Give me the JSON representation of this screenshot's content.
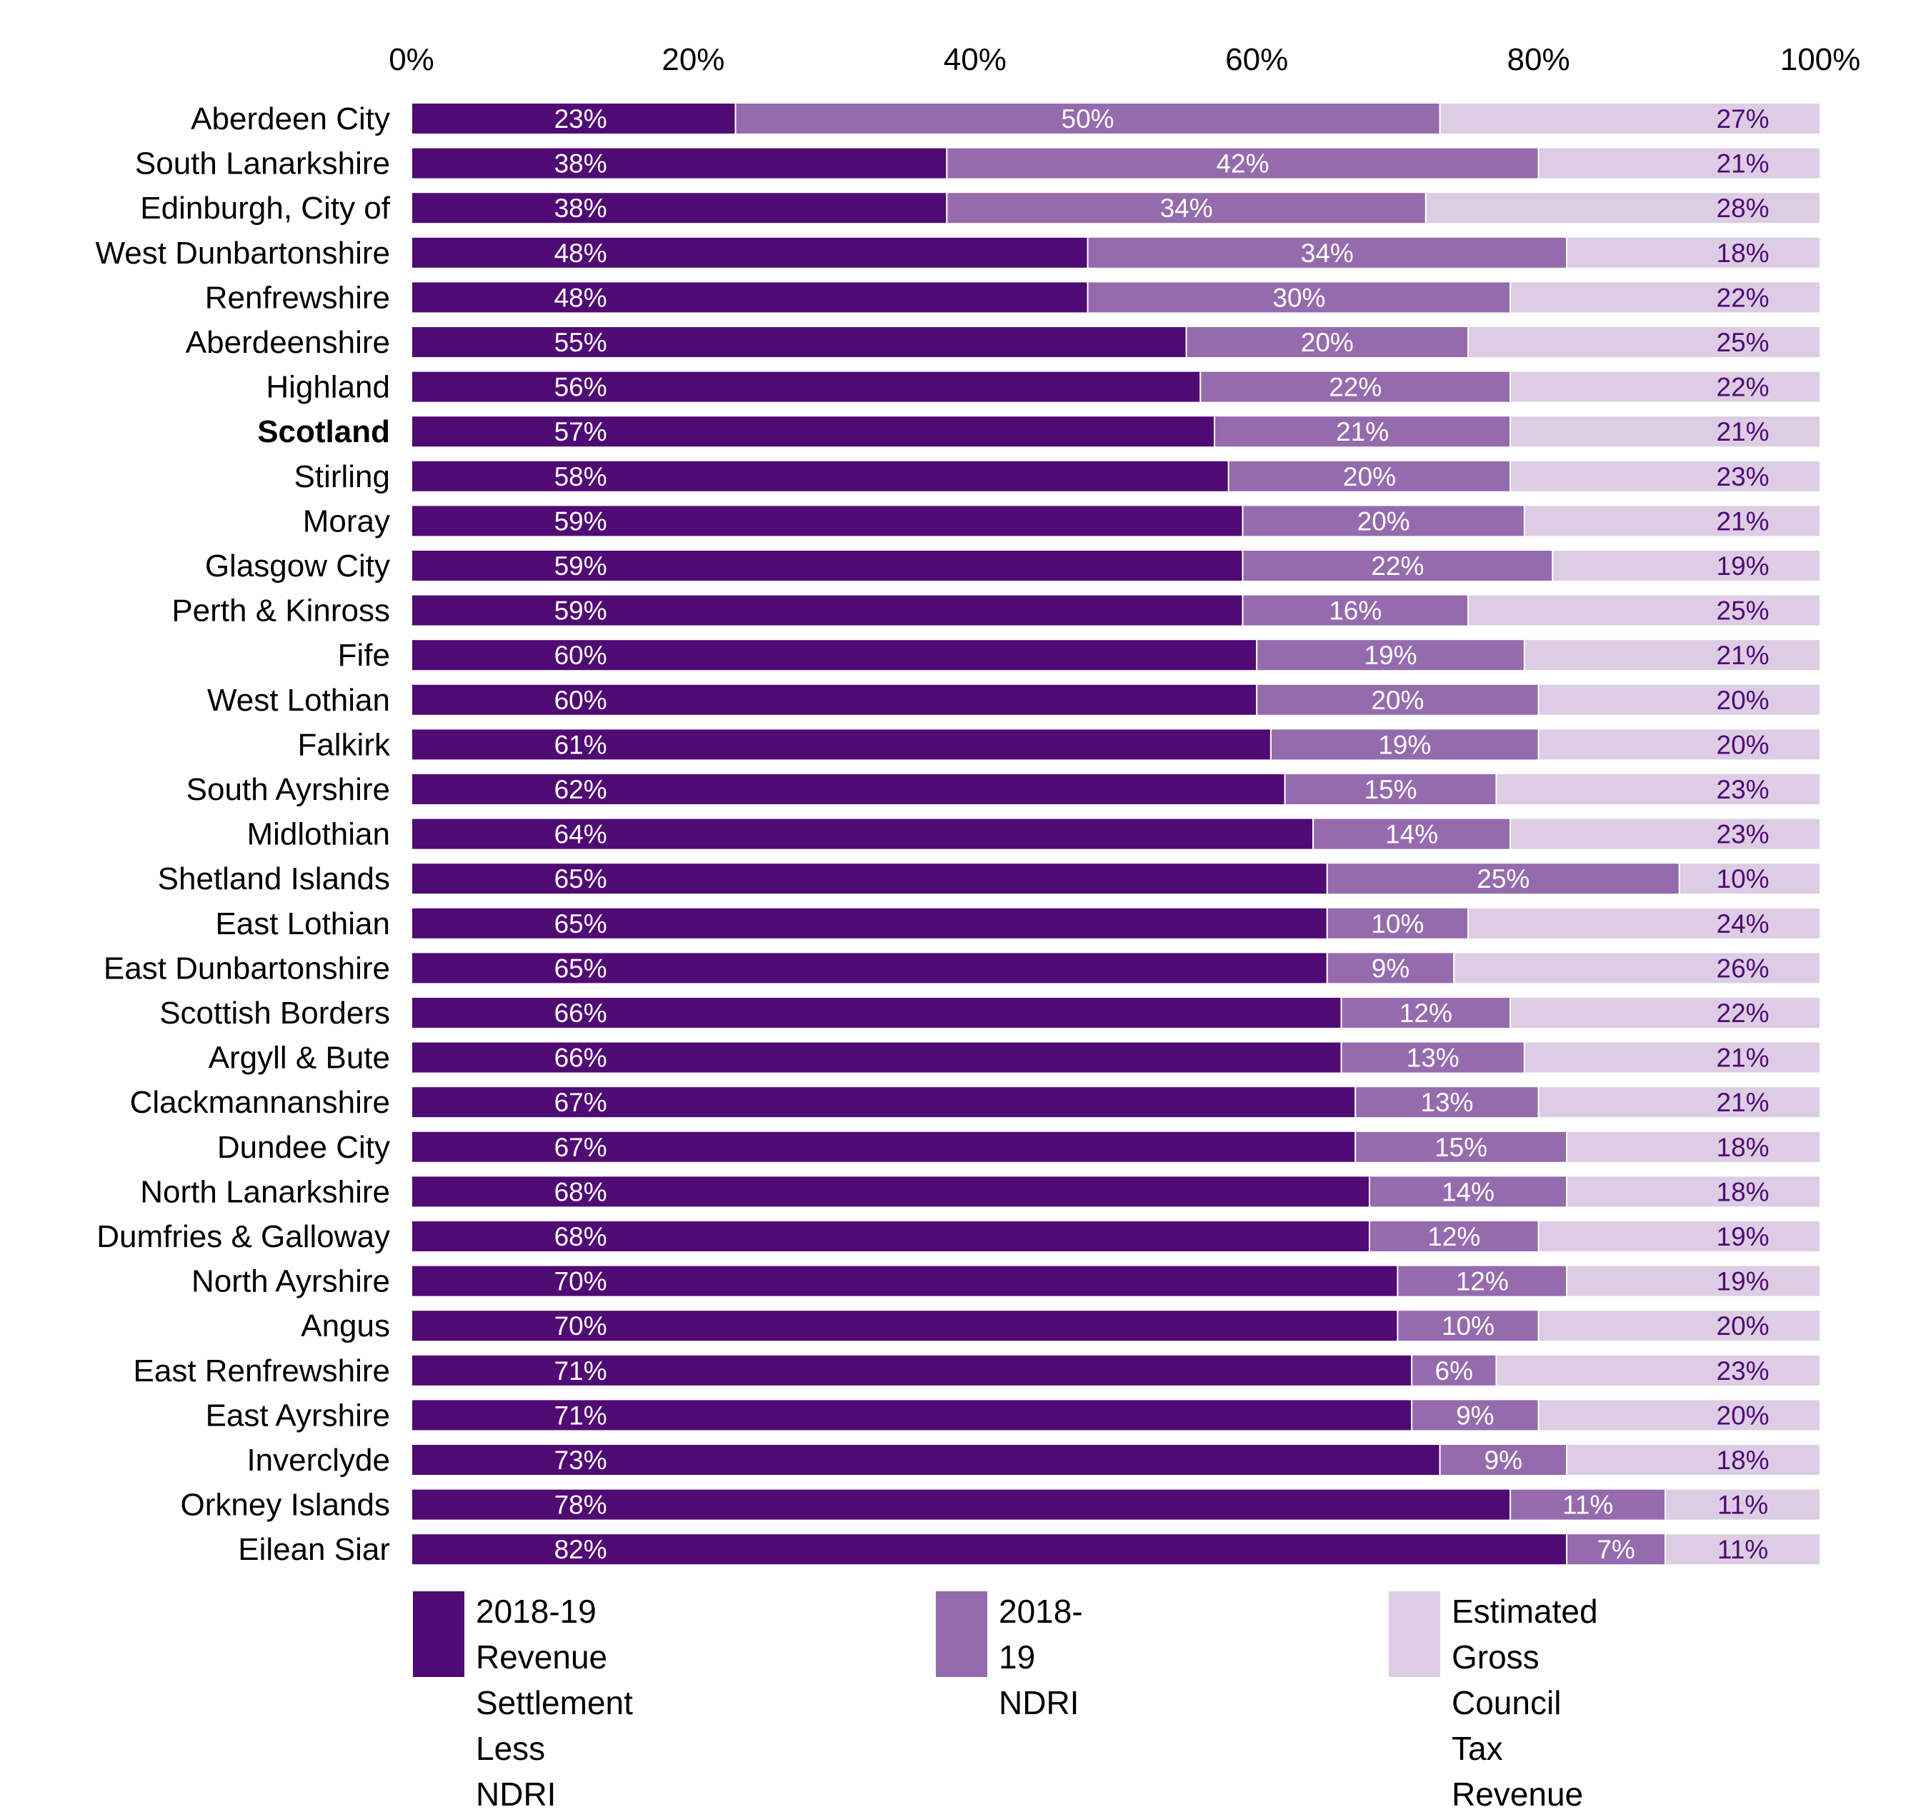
{
  "chart_data": {
    "type": "bar",
    "orientation": "horizontal",
    "stacked": "percent",
    "title": "",
    "xlabel": "",
    "ylabel": "",
    "xlim": [
      0,
      100
    ],
    "x_ticks": [
      "0%",
      "20%",
      "40%",
      "60%",
      "80%",
      "100%"
    ],
    "x_tick_values": [
      0,
      20,
      40,
      60,
      80,
      100
    ],
    "x_axis_position": "top",
    "grid": false,
    "legend_position": "bottom",
    "highlighted_category": "Scotland",
    "categories": [
      "Aberdeen City",
      "South Lanarkshire",
      "Edinburgh, City of",
      "West Dunbartonshire",
      "Renfrewshire",
      "Aberdeenshire",
      "Highland",
      "Scotland",
      "Stirling",
      "Moray",
      "Glasgow City",
      "Perth & Kinross",
      "Fife",
      "West Lothian",
      "Falkirk",
      "South Ayrshire",
      "Midlothian",
      "Shetland Islands",
      "East Lothian",
      "East Dunbartonshire",
      "Scottish Borders",
      "Argyll & Bute",
      "Clackmannanshire",
      "Dundee City",
      "North Lanarkshire",
      "Dumfries & Galloway",
      "North Ayrshire",
      "Angus",
      "East Renfrewshire",
      "East Ayrshire",
      "Inverclyde",
      "Orkney Islands",
      "Eilean Siar"
    ],
    "series": [
      {
        "name": "2018-19 Revenue Settlement Less NDRI",
        "color": "#500a74",
        "label_color": "#ffffff",
        "values": [
          23,
          38,
          38,
          48,
          48,
          55,
          56,
          57,
          58,
          59,
          59,
          59,
          60,
          60,
          61,
          62,
          64,
          65,
          65,
          65,
          66,
          66,
          67,
          67,
          68,
          68,
          70,
          70,
          71,
          71,
          73,
          78,
          82
        ]
      },
      {
        "name": "2018-19 NDRI",
        "color": "#956bae",
        "label_color": "#ffffff",
        "values": [
          50,
          42,
          34,
          34,
          30,
          20,
          22,
          21,
          20,
          20,
          22,
          16,
          19,
          20,
          19,
          15,
          14,
          25,
          10,
          9,
          12,
          13,
          13,
          15,
          14,
          12,
          12,
          10,
          6,
          9,
          9,
          11,
          7
        ]
      },
      {
        "name": "Estimated Gross Council Tax Revenue",
        "color": "#dccde4",
        "label_color": "#500a74",
        "values": [
          27,
          21,
          28,
          18,
          22,
          25,
          22,
          21,
          23,
          21,
          19,
          25,
          21,
          20,
          20,
          23,
          23,
          10,
          24,
          26,
          22,
          21,
          21,
          18,
          18,
          19,
          19,
          20,
          23,
          20,
          18,
          11,
          11
        ]
      }
    ],
    "legend": [
      {
        "label": "2018-19 Revenue\nSettlement Less NDRI",
        "color": "#500a74"
      },
      {
        "label": "2018-19 NDRI",
        "color": "#956bae"
      },
      {
        "label": "Estimated Gross\nCouncil Tax Revenue",
        "color": "#dccde4"
      }
    ],
    "value_suffix": "%"
  }
}
